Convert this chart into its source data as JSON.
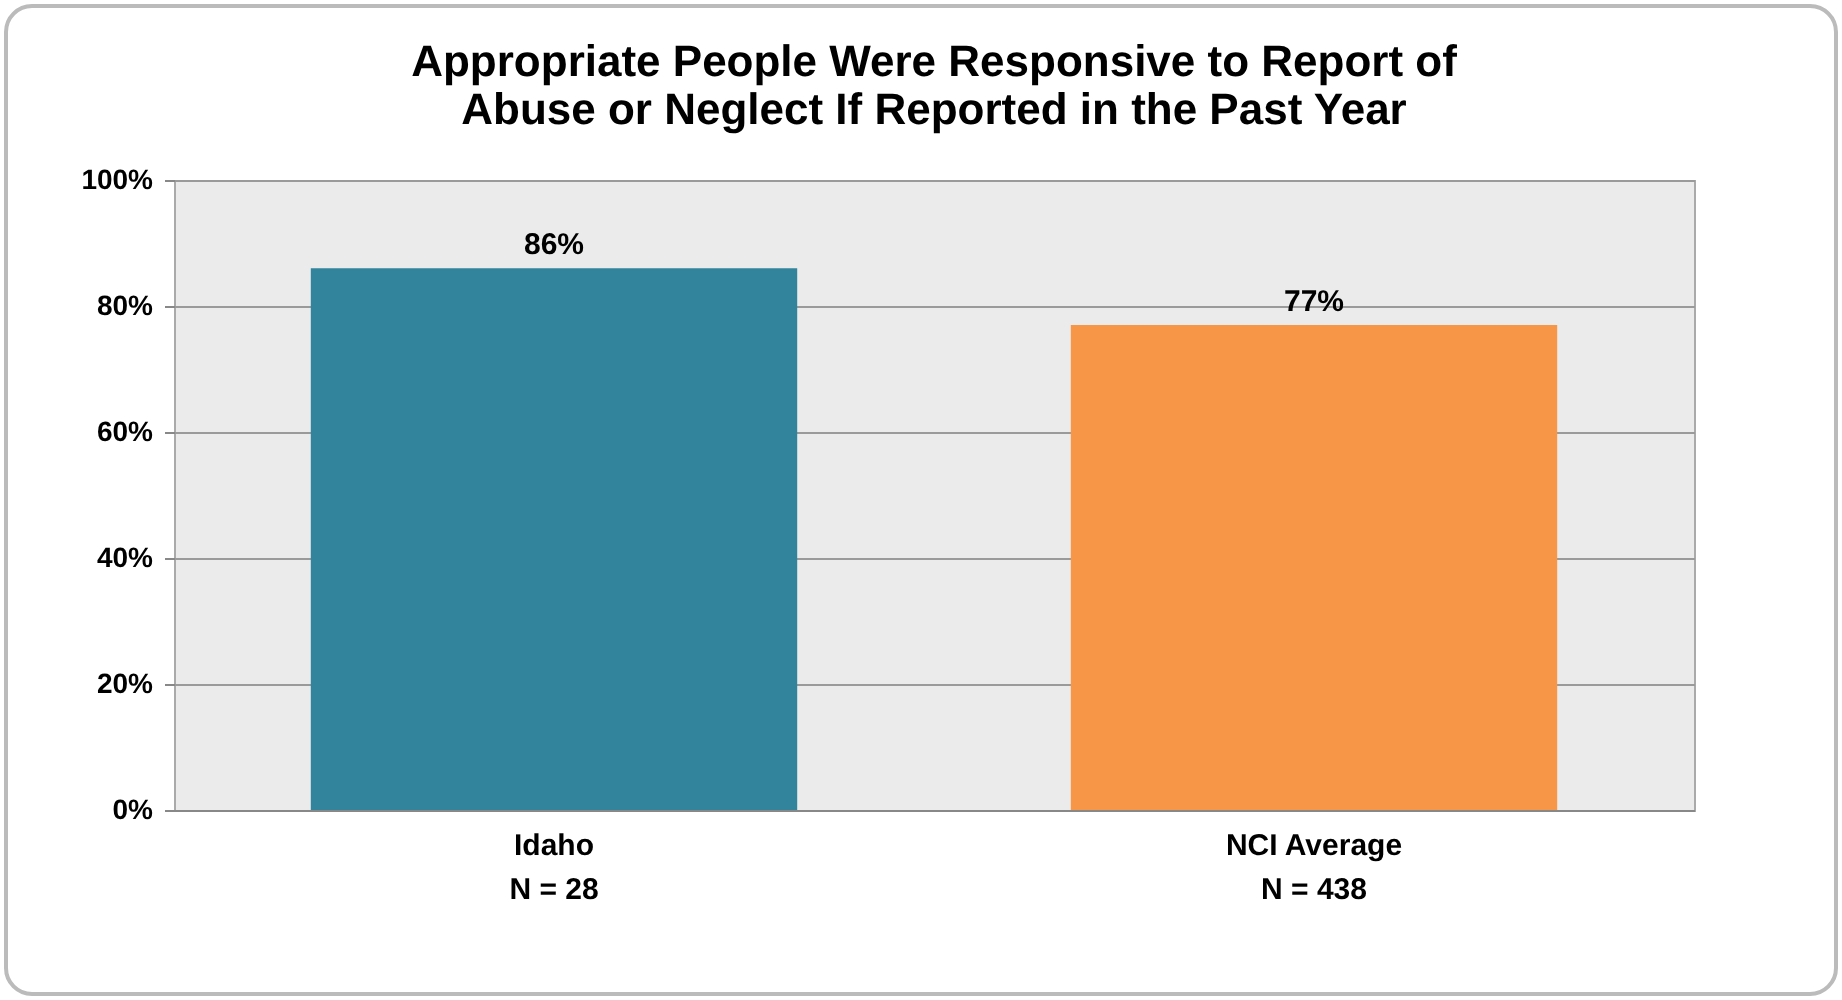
{
  "chart_data": {
    "type": "bar",
    "title": "Appropriate People Were Responsive to Report of Abuse or Neglect If Reported in the Past Year",
    "categories": [
      "Idaho\nN = 28",
      "NCI Average\nN = 438"
    ],
    "values": [
      86,
      77
    ],
    "colors": [
      "#31849b",
      "#f79646"
    ],
    "value_labels": [
      "86%",
      "77%"
    ],
    "ylim": [
      0,
      100
    ],
    "yticks": [
      {
        "value": 0,
        "label": "0%"
      },
      {
        "value": 20,
        "label": "20%"
      },
      {
        "value": 40,
        "label": "40%"
      },
      {
        "value": 60,
        "label": "60%"
      },
      {
        "value": 80,
        "label": "80%"
      },
      {
        "value": 100,
        "label": "100%"
      }
    ],
    "grid": "y"
  }
}
